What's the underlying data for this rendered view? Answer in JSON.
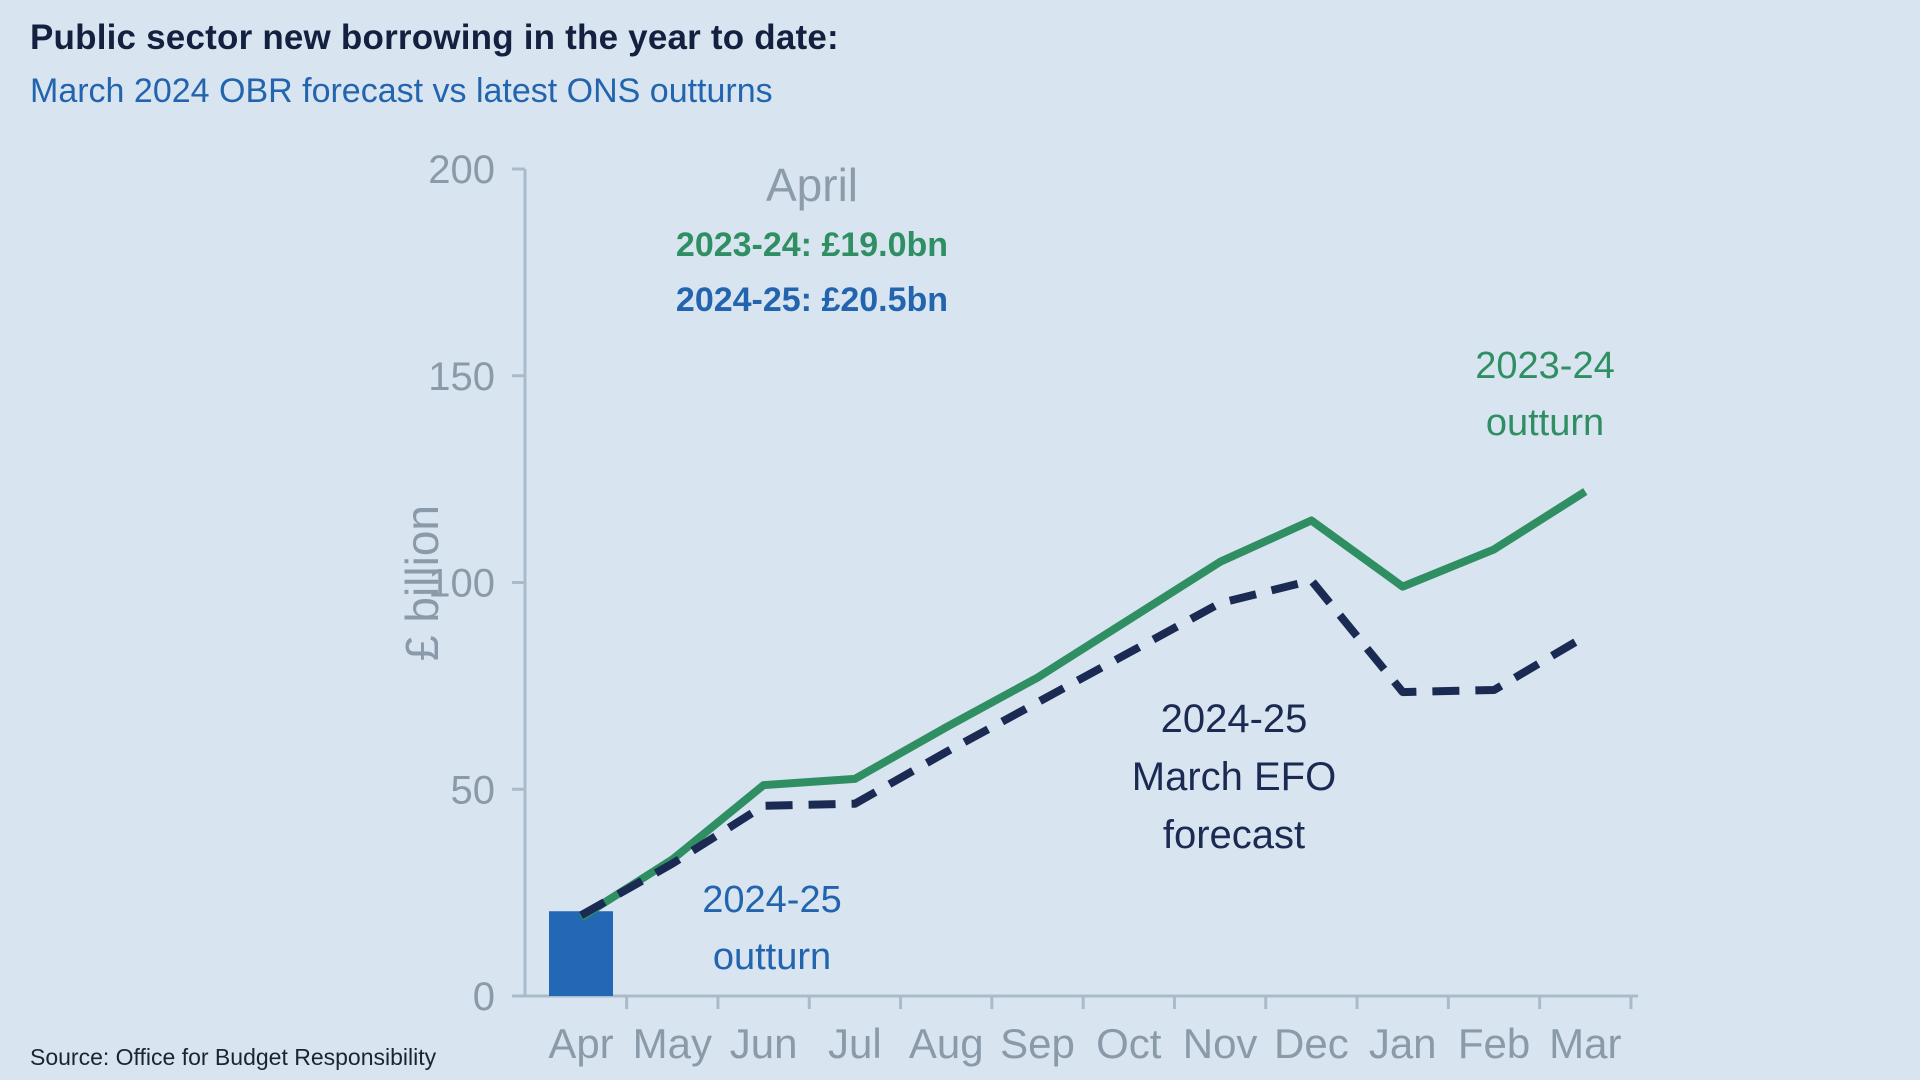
{
  "header": {
    "title": "Public sector new borrowing in the year to date:",
    "subtitle": "March 2024 OBR forecast vs latest ONS outturns"
  },
  "source": "Source: Office for Budget Responsibility",
  "colors": {
    "background": "#d8e5f1",
    "title_navy": "#13203f",
    "subtitle_blue": "#2264ad",
    "green_line": "#2f8f63",
    "navy_dashed_line": "#1b2a52",
    "blue_bar": "#2268b4",
    "axis_gray": "#a9bac8",
    "tick_text_gray": "#8b9aa9"
  },
  "chart_data": {
    "type": "line",
    "title": "Public sector new borrowing in the year to date: March 2024 OBR forecast vs latest ONS outturns",
    "xlabel": "",
    "ylabel": "£ billion",
    "ylim": [
      0,
      200
    ],
    "yticks": [
      0,
      50,
      100,
      150,
      200
    ],
    "grid": false,
    "legend_position": "inline-annotations",
    "categories": [
      "Apr",
      "May",
      "Jun",
      "Jul",
      "Aug",
      "Sep",
      "Oct",
      "Nov",
      "Dec",
      "Jan",
      "Feb",
      "Mar"
    ],
    "series": [
      {
        "name": "2023-24 outturn",
        "type": "line",
        "style": "solid",
        "color": "#2f8f63",
        "values": [
          19.0,
          33,
          51,
          52.5,
          65,
          77,
          91,
          105,
          115,
          99,
          108,
          122
        ]
      },
      {
        "name": "2024-25 March EFO forecast",
        "type": "line",
        "style": "dashed",
        "color": "#1b2a52",
        "values": [
          19.5,
          32,
          46,
          46.5,
          59,
          71,
          83,
          95,
          100.5,
          73.5,
          74,
          87
        ]
      },
      {
        "name": "2024-25 outturn",
        "type": "bar",
        "color": "#2268b4",
        "values": [
          20.5,
          null,
          null,
          null,
          null,
          null,
          null,
          null,
          null,
          null,
          null,
          null
        ]
      }
    ]
  },
  "annotations": {
    "callout": {
      "month": "April",
      "green_line": "2023-24: £19.0bn",
      "blue_line": "2024-25: £20.5bn"
    },
    "green_label": [
      "2023-24",
      "outturn"
    ],
    "navy_label": [
      "2024-25",
      "March EFO",
      "forecast"
    ],
    "blue_label": [
      "2024-25",
      "outturn"
    ]
  }
}
